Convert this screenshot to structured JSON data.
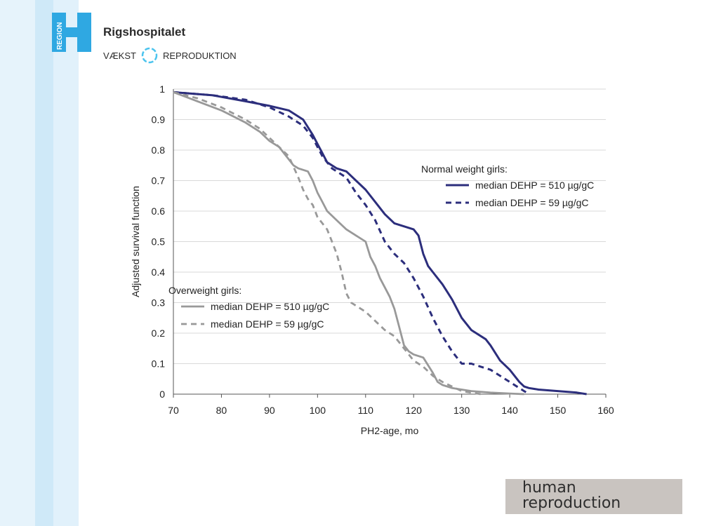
{
  "header": {
    "logo_text": "REGION",
    "hospital_name": "Rigshospitalet",
    "dept_left": "VÆKST",
    "dept_right": "REPRODUKTION"
  },
  "footer": {
    "journal_line1": "human",
    "journal_line2": "reproduction"
  },
  "colors": {
    "normal": "#2c2e7c",
    "overweight": "#999999",
    "grid": "#d9d9d9",
    "accent": "#4cc4ee"
  },
  "chart_data": {
    "type": "line",
    "title": "",
    "xlabel": "PH2-age, mo",
    "ylabel": "Adjusted survival function",
    "xlim": [
      70,
      160
    ],
    "ylim": [
      0,
      1
    ],
    "xticks": [
      "70",
      "80",
      "90",
      "100",
      "110",
      "120",
      "130",
      "140",
      "150",
      "160"
    ],
    "yticks": [
      "0",
      "0.1",
      "0.2",
      "0.3",
      "0.4",
      "0.5",
      "0.6",
      "0.7",
      "0.8",
      "0.9",
      "1"
    ],
    "legends": [
      {
        "title": "Normal weight girls:",
        "entries": [
          "median DEHP = 510 µg/gC",
          "median DEHP = 59 µg/gC"
        ]
      },
      {
        "title": "Overweight girls:",
        "entries": [
          "median DEHP = 510 µg/gC",
          "median DEHP = 59 µg/gC"
        ]
      }
    ],
    "series": [
      {
        "name": "Normal weight girls: median DEHP = 510 µg/gC",
        "group": "normal",
        "style": "solid",
        "x": [
          70,
          78,
          85,
          90,
          94,
          97,
          99,
          100,
          101,
          102,
          103,
          104,
          106,
          108,
          110,
          112,
          114,
          116,
          120,
          121,
          122,
          123,
          124,
          126,
          128,
          130,
          132,
          135,
          136,
          138,
          140,
          142,
          143,
          144,
          146,
          150,
          154,
          156
        ],
        "y": [
          0.99,
          0.98,
          0.96,
          0.945,
          0.93,
          0.9,
          0.85,
          0.82,
          0.79,
          0.76,
          0.75,
          0.74,
          0.73,
          0.7,
          0.67,
          0.63,
          0.59,
          0.56,
          0.54,
          0.52,
          0.46,
          0.42,
          0.4,
          0.36,
          0.31,
          0.25,
          0.21,
          0.18,
          0.16,
          0.11,
          0.08,
          0.04,
          0.025,
          0.02,
          0.015,
          0.01,
          0.005,
          0.0
        ]
      },
      {
        "name": "Normal weight girls: median DEHP = 59 µg/gC",
        "group": "normal",
        "style": "dashed",
        "x": [
          70,
          78,
          85,
          90,
          94,
          97,
          99,
          101,
          102,
          103,
          104,
          106,
          108,
          110,
          112,
          114,
          116,
          118,
          120,
          122,
          124,
          126,
          128,
          130,
          132,
          134,
          136,
          138,
          140,
          142,
          143,
          144
        ],
        "y": [
          0.99,
          0.98,
          0.965,
          0.94,
          0.91,
          0.88,
          0.84,
          0.78,
          0.76,
          0.74,
          0.73,
          0.71,
          0.66,
          0.62,
          0.57,
          0.5,
          0.46,
          0.43,
          0.38,
          0.32,
          0.25,
          0.19,
          0.14,
          0.1,
          0.1,
          0.09,
          0.08,
          0.06,
          0.04,
          0.02,
          0.01,
          0.0
        ]
      },
      {
        "name": "Overweight girls: median DEHP = 510 µg/gC",
        "group": "overweight",
        "style": "solid",
        "x": [
          70,
          75,
          80,
          85,
          88,
          90,
          92,
          94,
          95,
          96,
          98,
          99,
          100,
          101,
          102,
          104,
          106,
          108,
          110,
          111,
          112,
          113,
          114,
          115,
          116,
          117,
          118,
          119,
          120,
          122,
          124,
          125,
          126,
          128,
          130,
          132,
          136,
          140,
          143
        ],
        "y": [
          0.99,
          0.96,
          0.93,
          0.89,
          0.86,
          0.83,
          0.81,
          0.77,
          0.75,
          0.74,
          0.73,
          0.7,
          0.66,
          0.63,
          0.6,
          0.57,
          0.54,
          0.52,
          0.5,
          0.45,
          0.42,
          0.38,
          0.35,
          0.32,
          0.28,
          0.22,
          0.16,
          0.14,
          0.13,
          0.12,
          0.07,
          0.04,
          0.03,
          0.02,
          0.015,
          0.01,
          0.005,
          0.002,
          0.0
        ]
      },
      {
        "name": "Overweight girls: median DEHP = 59 µg/gC",
        "group": "overweight",
        "style": "dashed",
        "x": [
          70,
          75,
          80,
          85,
          88,
          90,
          92,
          94,
          96,
          97,
          98,
          99,
          100,
          101,
          102,
          103,
          104,
          105,
          106,
          107,
          108,
          110,
          112,
          114,
          116,
          118,
          120,
          122,
          124,
          126,
          128,
          130,
          132,
          134
        ],
        "y": [
          0.99,
          0.97,
          0.94,
          0.9,
          0.87,
          0.84,
          0.81,
          0.78,
          0.71,
          0.67,
          0.64,
          0.62,
          0.58,
          0.56,
          0.54,
          0.5,
          0.46,
          0.4,
          0.33,
          0.3,
          0.29,
          0.27,
          0.24,
          0.21,
          0.19,
          0.15,
          0.11,
          0.09,
          0.06,
          0.04,
          0.025,
          0.01,
          0.005,
          0.0
        ]
      }
    ]
  }
}
